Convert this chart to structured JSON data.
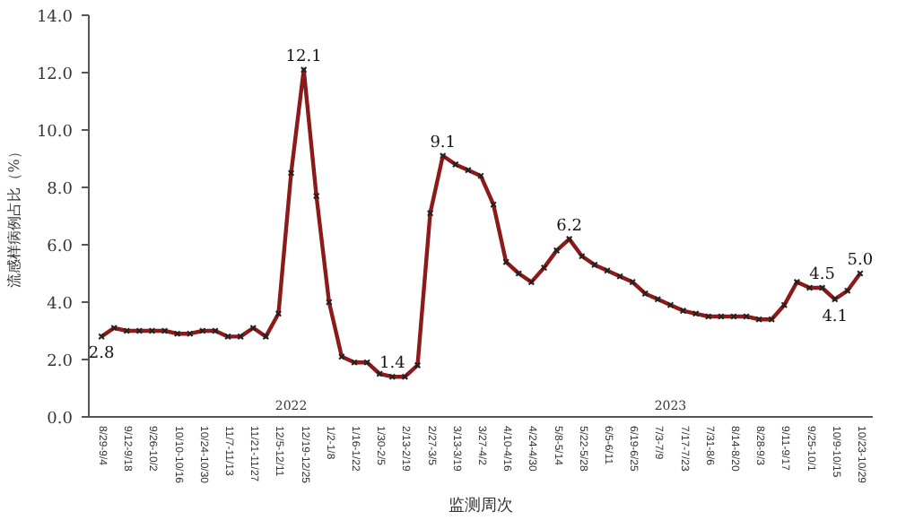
{
  "chart_data": {
    "type": "line",
    "xlabel": "监测周次",
    "ylabel": "流感样病例占比（%）",
    "categories": [
      "8/29-9/4",
      null,
      "9/12-9/18",
      null,
      "9/26-10/2",
      null,
      "10/10-10/16",
      null,
      "10/24-10/30",
      null,
      "11/7-11/13",
      null,
      "11/21-11/27",
      null,
      "12/5-12/11",
      null,
      "12/19-12/25",
      null,
      "1/2-1/8",
      null,
      "1/16-1/22",
      null,
      "1/30-2/5",
      null,
      "2/13-2/19",
      null,
      "2/27-3/5",
      null,
      "3/13-3/19",
      null,
      "3/27-4/2",
      null,
      "4/10-4/16",
      null,
      "4/24-4/30",
      null,
      "5/8-5/14",
      null,
      "5/22-5/28",
      null,
      "6/5-6/11",
      null,
      "6/19-6/25",
      null,
      "7/3-7/9",
      null,
      "7/17-7/23",
      null,
      "7/31-8/6",
      null,
      "8/14-8/20",
      null,
      "8/28-9/3",
      null,
      "9/11-9/17",
      null,
      "9/25-10/1",
      null,
      "10/9-10/15",
      null,
      "10/23-10/29"
    ],
    "series": [
      {
        "color": "#8b1a1a",
        "values": [
          2.8,
          3.1,
          3.0,
          3.0,
          3.0,
          3.0,
          2.9,
          2.9,
          3.0,
          3.0,
          2.8,
          2.8,
          3.1,
          2.8,
          3.6,
          8.5,
          12.1,
          7.7,
          4.0,
          2.1,
          1.9,
          1.9,
          1.5,
          1.4,
          1.4,
          1.8,
          7.1,
          9.1,
          8.8,
          8.6,
          8.4,
          7.4,
          5.4,
          5.0,
          4.7,
          5.2,
          5.8,
          6.2,
          5.6,
          5.3,
          5.1,
          4.9,
          4.7,
          4.3,
          4.1,
          3.9,
          3.7,
          3.6,
          3.5,
          3.5,
          3.5,
          3.5,
          3.4,
          3.4,
          3.9,
          4.7,
          4.5,
          4.5,
          4.1,
          4.4,
          5.0
        ],
        "value_labels": [
          "2.8",
          null,
          null,
          null,
          null,
          null,
          null,
          null,
          null,
          null,
          null,
          null,
          null,
          null,
          null,
          null,
          "12.1",
          null,
          null,
          null,
          null,
          null,
          null,
          "1.4",
          null,
          null,
          null,
          "9.1",
          null,
          null,
          null,
          null,
          null,
          null,
          null,
          null,
          null,
          "6.2",
          null,
          null,
          null,
          null,
          null,
          null,
          null,
          null,
          null,
          null,
          null,
          null,
          null,
          null,
          null,
          null,
          null,
          null,
          null,
          "4.5",
          "4.1",
          null,
          "5.0"
        ]
      }
    ],
    "ylim": [
      0,
      14
    ],
    "yticks": [
      {
        "value": 0,
        "label": "0.0"
      },
      {
        "value": 2,
        "label": "2.0"
      },
      {
        "value": 4,
        "label": "4.0"
      },
      {
        "value": 6,
        "label": "6.0"
      },
      {
        "value": 8,
        "label": "8.0"
      },
      {
        "value": 10,
        "label": "10.0"
      },
      {
        "value": 12,
        "label": "12.0"
      },
      {
        "value": 14,
        "label": "14.0"
      }
    ],
    "annotations": [
      "2022",
      "2023"
    ],
    "marker": "cross",
    "grid": false
  }
}
